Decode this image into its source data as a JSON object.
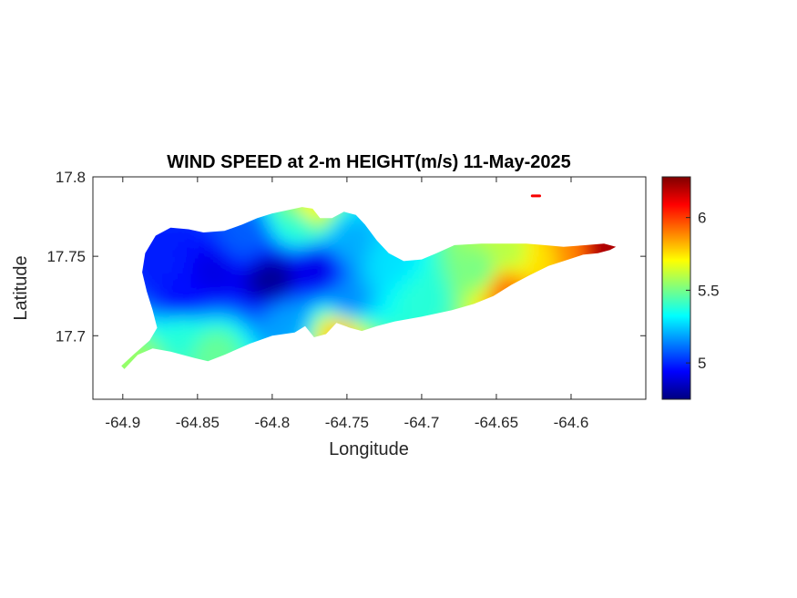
{
  "chart_data": {
    "type": "heatmap",
    "title": "WIND SPEED at 2-m HEIGHT(m/s) 11-May-2025",
    "xlabel": "Longitude",
    "ylabel": "Latitude",
    "xlim": [
      -64.92,
      -64.55
    ],
    "ylim": [
      17.66,
      17.8
    ],
    "x_ticks": [
      -64.9,
      -64.85,
      -64.8,
      -64.75,
      -64.7,
      -64.65,
      -64.6
    ],
    "x_tick_labels": [
      "-64.9",
      "-64.85",
      "-64.8",
      "-64.75",
      "-64.7",
      "-64.65",
      "-64.6"
    ],
    "y_ticks": [
      17.7,
      17.75,
      17.8
    ],
    "y_tick_labels": [
      "17.7",
      "17.75",
      "17.8"
    ],
    "colorbar": {
      "colormap": "jet",
      "clim": [
        4.75,
        6.28
      ],
      "ticks": [
        5,
        5.5,
        6
      ],
      "tick_labels": [
        "5",
        "5.5",
        "6"
      ]
    },
    "colormap_colors": [
      "#00007f",
      "#0000ff",
      "#007fff",
      "#00ffff",
      "#7fff7f",
      "#ffff00",
      "#ff7f00",
      "#ff0000",
      "#7f0000"
    ],
    "island_outline": [
      [
        -64.899,
        17.679
      ],
      [
        -64.89,
        17.688
      ],
      [
        -64.88,
        17.692
      ],
      [
        -64.868,
        17.69
      ],
      [
        -64.852,
        17.686
      ],
      [
        -64.843,
        17.684
      ],
      [
        -64.832,
        17.688
      ],
      [
        -64.815,
        17.695
      ],
      [
        -64.8,
        17.7
      ],
      [
        -64.785,
        17.702
      ],
      [
        -64.778,
        17.706
      ],
      [
        -64.772,
        17.699
      ],
      [
        -64.764,
        17.701
      ],
      [
        -64.757,
        17.708
      ],
      [
        -64.748,
        17.705
      ],
      [
        -64.74,
        17.703
      ],
      [
        -64.73,
        17.706
      ],
      [
        -64.718,
        17.709
      ],
      [
        -64.7,
        17.712
      ],
      [
        -64.68,
        17.716
      ],
      [
        -64.665,
        17.72
      ],
      [
        -64.652,
        17.725
      ],
      [
        -64.64,
        17.732
      ],
      [
        -64.628,
        17.738
      ],
      [
        -64.615,
        17.744
      ],
      [
        -64.605,
        17.747
      ],
      [
        -64.592,
        17.751
      ],
      [
        -64.582,
        17.752
      ],
      [
        -64.574,
        17.754
      ],
      [
        -64.57,
        17.756
      ],
      [
        -64.578,
        17.758
      ],
      [
        -64.59,
        17.757
      ],
      [
        -64.605,
        17.756
      ],
      [
        -64.618,
        17.757
      ],
      [
        -64.63,
        17.758
      ],
      [
        -64.645,
        17.758
      ],
      [
        -64.66,
        17.758
      ],
      [
        -64.678,
        17.757
      ],
      [
        -64.69,
        17.752
      ],
      [
        -64.7,
        17.748
      ],
      [
        -64.712,
        17.747
      ],
      [
        -64.722,
        17.752
      ],
      [
        -64.73,
        17.76
      ],
      [
        -64.738,
        17.77
      ],
      [
        -64.744,
        17.776
      ],
      [
        -64.752,
        17.778
      ],
      [
        -64.76,
        17.774
      ],
      [
        -64.768,
        17.774
      ],
      [
        -64.773,
        17.78
      ],
      [
        -64.78,
        17.781
      ],
      [
        -64.79,
        17.779
      ],
      [
        -64.8,
        17.777
      ],
      [
        -64.81,
        17.774
      ],
      [
        -64.82,
        17.77
      ],
      [
        -64.832,
        17.766
      ],
      [
        -64.846,
        17.765
      ],
      [
        -64.856,
        17.767
      ],
      [
        -64.868,
        17.768
      ],
      [
        -64.878,
        17.763
      ],
      [
        -64.885,
        17.752
      ],
      [
        -64.887,
        17.74
      ],
      [
        -64.884,
        17.728
      ],
      [
        -64.88,
        17.716
      ],
      [
        -64.877,
        17.705
      ],
      [
        -64.882,
        17.697
      ],
      [
        -64.893,
        17.688
      ],
      [
        -64.901,
        17.681
      ]
    ],
    "small_island": [
      [
        -64.626,
        17.788
      ],
      [
        -64.621,
        17.788
      ]
    ],
    "wind_field_samples": [
      {
        "lon": -64.8,
        "lat": 17.735,
        "value": 4.78
      },
      {
        "lon": -64.84,
        "lat": 17.74,
        "value": 4.9
      },
      {
        "lon": -64.87,
        "lat": 17.745,
        "value": 4.98
      },
      {
        "lon": -64.86,
        "lat": 17.725,
        "value": 4.95
      },
      {
        "lon": -64.77,
        "lat": 17.742,
        "value": 4.9
      },
      {
        "lon": -64.82,
        "lat": 17.762,
        "value": 5.08
      },
      {
        "lon": -64.78,
        "lat": 17.772,
        "value": 5.38
      },
      {
        "lon": -64.79,
        "lat": 17.71,
        "value": 5.18
      },
      {
        "lon": -64.86,
        "lat": 17.7,
        "value": 5.38
      },
      {
        "lon": -64.89,
        "lat": 17.683,
        "value": 5.55
      },
      {
        "lon": -64.84,
        "lat": 17.69,
        "value": 5.48
      },
      {
        "lon": -64.75,
        "lat": 17.76,
        "value": 5.2
      },
      {
        "lon": -64.75,
        "lat": 17.72,
        "value": 5.15
      },
      {
        "lon": -64.72,
        "lat": 17.745,
        "value": 5.28
      },
      {
        "lon": -64.7,
        "lat": 17.725,
        "value": 5.38
      },
      {
        "lon": -64.66,
        "lat": 17.74,
        "value": 5.5
      },
      {
        "lon": -64.64,
        "lat": 17.752,
        "value": 5.6
      },
      {
        "lon": -64.62,
        "lat": 17.748,
        "value": 5.75
      },
      {
        "lon": -64.645,
        "lat": 17.73,
        "value": 5.92
      },
      {
        "lon": -64.6,
        "lat": 17.752,
        "value": 5.88
      },
      {
        "lon": -64.58,
        "lat": 17.754,
        "value": 6.22
      },
      {
        "lon": -64.755,
        "lat": 17.703,
        "value": 5.8
      },
      {
        "lon": -64.775,
        "lat": 17.778,
        "value": 5.72
      },
      {
        "lon": -64.624,
        "lat": 17.788,
        "value": 6.1
      }
    ]
  }
}
